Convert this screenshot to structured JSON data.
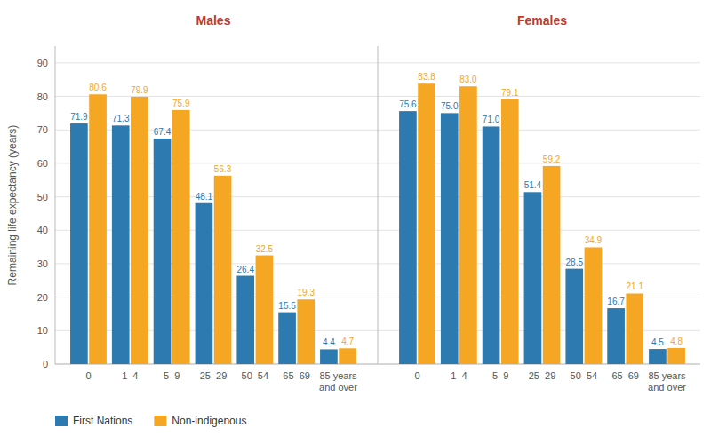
{
  "chart_data": {
    "type": "bar",
    "y_label": "Remaining life expectancy (years)",
    "categories": [
      "0",
      "1–4",
      "5–9",
      "25–29",
      "50–54",
      "65–69",
      "85 years\nand over",
      "0",
      "1–4",
      "5–9",
      "25–29",
      "50–54",
      "65–69",
      "85 years\nand over"
    ],
    "series": [
      {
        "name": "First Nations",
        "color": "#2d7ab0",
        "values": [
          71.9,
          71.3,
          67.4,
          48.1,
          26.4,
          15.5,
          4.4,
          75.6,
          75.0,
          71.0,
          51.4,
          28.5,
          16.7,
          4.5
        ],
        "value_labels": [
          "71.9",
          "71.3",
          "67.4",
          "48.1",
          "26.4",
          "15.5",
          "4.4",
          "75.6",
          "75.0",
          "71.0",
          "51.4",
          "28.5",
          "16.7",
          "4.5"
        ]
      },
      {
        "name": "Non-indigenous",
        "color": "#f5a623",
        "values": [
          80.6,
          79.9,
          75.9,
          56.3,
          32.5,
          19.3,
          4.7,
          83.8,
          83.0,
          79.1,
          59.2,
          34.9,
          21.1,
          4.8
        ],
        "value_labels": [
          "80.6",
          "79.9",
          "75.9",
          "56.3",
          "32.5",
          "19.3",
          "4.7",
          "83.8",
          "83.0",
          "79.1",
          "59.2",
          "34.9",
          "21.1",
          "4.8"
        ]
      }
    ],
    "annotations": [
      {
        "text": "Males",
        "color": "#c0392b"
      },
      {
        "text": "Females",
        "color": "#c0392b"
      }
    ],
    "ylim": [
      0,
      95
    ],
    "yticks": [
      0,
      10,
      20,
      30,
      40,
      50,
      60,
      70,
      80,
      90
    ],
    "grid": true,
    "data_labels": true,
    "legend": "bottom"
  }
}
